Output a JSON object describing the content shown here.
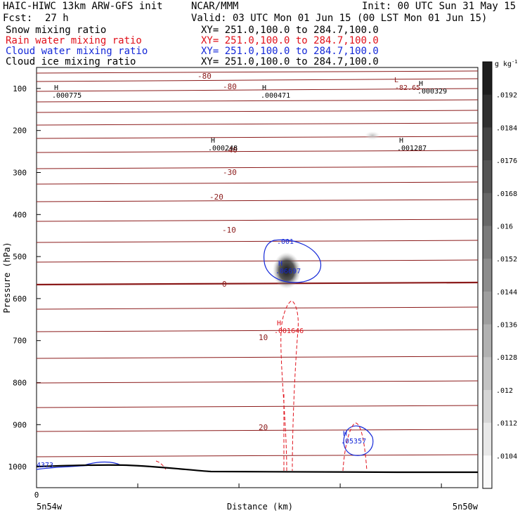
{
  "header": {
    "model": "HAIC-HIWC 13km ARW-GFS init",
    "org": "NCAR/MMM",
    "init": "Init: 00 UTC Sun 31 May 15",
    "fcst_label": "Fcst:",
    "fcst_value": "27 h",
    "valid": "Valid: 03 UTC Mon 01 Jun 15 (00 LST Mon 01 Jun 15)",
    "fields": [
      {
        "name": "Snow mixing ratio",
        "xy": "XY= 251.0,100.0 to 284.7,100.0",
        "color": "#000000"
      },
      {
        "name": "Rain water mixing ratio",
        "xy": "XY= 251.0,100.0 to 284.7,100.0",
        "color": "#e0101a"
      },
      {
        "name": "Cloud water mixing ratio",
        "xy": "XY= 251.0,100.0 to 284.7,100.0",
        "color": "#1428d8"
      },
      {
        "name": "Cloud ice mixing ratio",
        "xy": "XY= 251.0,100.0 to 284.7,100.0",
        "color": "#000000"
      }
    ]
  },
  "chart_data": {
    "type": "contour",
    "ylabel": "Pressure (hPa)",
    "xlabel": "Distance (km)",
    "x_start_label": "5n54w",
    "x_end_label": "5n50w",
    "x_zero_label": "0",
    "y_ticks": [
      100,
      200,
      300,
      400,
      500,
      600,
      700,
      800,
      900,
      1000
    ],
    "ylim": [
      1050,
      50
    ],
    "temperature_contours": [
      {
        "label": "-80"
      },
      {
        "label": "-40"
      },
      {
        "label": "-30"
      },
      {
        "label": "-20"
      },
      {
        "label": "-10"
      },
      {
        "label": "0"
      },
      {
        "label": "10"
      },
      {
        "label": "20"
      }
    ],
    "extrema_labels": [
      {
        "type": "H",
        "value": ".000775",
        "color": "#000000"
      },
      {
        "type": "H",
        "value": ".000471",
        "color": "#000000"
      },
      {
        "type": "L",
        "value": "-82.65",
        "color": "#8b1a1a"
      },
      {
        "type": "H",
        "value": ".000329",
        "color": "#000000"
      },
      {
        "type": "H",
        "value": ".000248",
        "color": "#000000"
      },
      {
        "type": "H",
        "value": ".001287",
        "color": "#000000"
      },
      {
        "type": "H",
        "value": ".06697",
        "color": "#1428d8"
      },
      {
        "type": "H",
        "value": ".001646",
        "color": "#e0101a"
      },
      {
        "type": "H",
        "value": ".05357",
        "color": "#1428d8"
      },
      {
        "type": "",
        "value": "4373",
        "color": "#1428d8"
      }
    ],
    "cloud_water_contour_label": ".001",
    "colorbar": {
      "unit": "g kg",
      "unit_exp": "-1",
      "ticks": [
        ".0192",
        ".0184",
        ".0176",
        ".0168",
        ".016",
        ".0152",
        ".0144",
        ".0136",
        ".0128",
        ".012",
        ".0112",
        ".0104"
      ]
    }
  }
}
